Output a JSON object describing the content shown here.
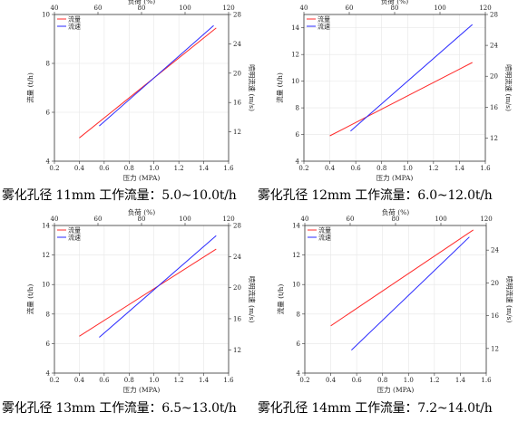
{
  "colors": {
    "flow": "#ff2a2a",
    "velocity": "#2a2aff",
    "axis": "#333333"
  },
  "captions": [
    "雾化孔径 11mm 工作流量：5.0~10.0t/h",
    "雾化孔径 12mm  工作流量：6.0~12.0t/h",
    "雾化孔径 13mm 工作流量：6.5~13.0t/h",
    "雾化孔径 14mm  工作流量：7.2~14.0t/h"
  ],
  "chart_data": [
    {
      "type": "line",
      "title": "",
      "xlabel": "压力 (MPA)",
      "ylabel": "流量 (t/h)",
      "y2label": "喷明流速 (m/s)",
      "x2label": "负荷 (%)",
      "xlim": [
        0.2,
        1.6
      ],
      "xticks": [
        0.2,
        0.4,
        0.6,
        0.8,
        1.0,
        1.2,
        1.4,
        1.6
      ],
      "x2lim": [
        40,
        120
      ],
      "x2ticks": [
        40,
        60,
        80,
        100,
        120
      ],
      "ylim": [
        4,
        10
      ],
      "yticks": [
        4,
        6,
        8,
        10
      ],
      "y2lim": [
        8,
        28
      ],
      "y2ticks": [
        12,
        16,
        20,
        24,
        28
      ],
      "legend": [
        "流量",
        "流速"
      ],
      "legend_position": "top-left",
      "grid": true,
      "series": [
        {
          "name": "流量",
          "axis": "left",
          "x": [
            0.4,
            1.5
          ],
          "y": [
            4.95,
            9.45
          ]
        },
        {
          "name": "流速",
          "axis": "right",
          "x": [
            0.56,
            1.48
          ],
          "y": [
            12.8,
            26.5
          ]
        }
      ]
    },
    {
      "type": "line",
      "title": "",
      "xlabel": "压力 (MPA)",
      "ylabel": "流量 (t/h)",
      "y2label": "喷明流速 (m/s)",
      "x2label": "负荷 (%)",
      "xlim": [
        0.2,
        1.6
      ],
      "xticks": [
        0.2,
        0.4,
        0.6,
        0.8,
        1.0,
        1.2,
        1.4,
        1.6
      ],
      "x2lim": [
        40,
        120
      ],
      "x2ticks": [
        40,
        60,
        80,
        100,
        120
      ],
      "ylim": [
        4,
        15
      ],
      "yticks": [
        4,
        6,
        8,
        10,
        12,
        14
      ],
      "y2lim": [
        9,
        28
      ],
      "y2ticks": [
        12,
        16,
        20,
        24,
        28
      ],
      "legend": [
        "流量",
        "流速"
      ],
      "legend_position": "top-left",
      "grid": true,
      "series": [
        {
          "name": "流量",
          "axis": "left",
          "x": [
            0.4,
            1.5
          ],
          "y": [
            5.9,
            11.4
          ]
        },
        {
          "name": "流速",
          "axis": "right",
          "x": [
            0.56,
            1.5
          ],
          "y": [
            12.9,
            26.7
          ]
        }
      ]
    },
    {
      "type": "line",
      "title": "",
      "xlabel": "压力 (MPA)",
      "ylabel": "流量 (t/h)",
      "y2label": "喷明流速 (m/s)",
      "x2label": "负荷 (%)",
      "xlim": [
        0.2,
        1.6
      ],
      "xticks": [
        0.2,
        0.4,
        0.6,
        0.8,
        1.0,
        1.2,
        1.4,
        1.6
      ],
      "x2lim": [
        40,
        120
      ],
      "x2ticks": [
        40,
        60,
        80,
        100,
        120
      ],
      "ylim": [
        4,
        14
      ],
      "yticks": [
        4,
        6,
        8,
        10,
        12,
        14
      ],
      "y2lim": [
        9,
        28
      ],
      "y2ticks": [
        12,
        16,
        20,
        24,
        28
      ],
      "legend": [
        "流量",
        "流速"
      ],
      "legend_position": "top-left",
      "grid": true,
      "series": [
        {
          "name": "流量",
          "axis": "left",
          "x": [
            0.4,
            1.5
          ],
          "y": [
            6.5,
            12.4
          ]
        },
        {
          "name": "流速",
          "axis": "right",
          "x": [
            0.56,
            1.5
          ],
          "y": [
            13.6,
            26.7
          ]
        }
      ]
    },
    {
      "type": "line",
      "title": "",
      "xlabel": "压力 (MPA)",
      "ylabel": "流量 (t/h)",
      "y2label": "喷明流速 (m/s)",
      "x2label": "负荷 (%)",
      "xlim": [
        0.2,
        1.6
      ],
      "xticks": [
        0.2,
        0.4,
        0.6,
        0.8,
        1.0,
        1.2,
        1.4,
        1.6
      ],
      "x2lim": [
        40,
        120
      ],
      "x2ticks": [
        40,
        60,
        80,
        100,
        120
      ],
      "ylim": [
        4,
        14
      ],
      "yticks": [
        4,
        6,
        8,
        10,
        12,
        14
      ],
      "y2lim": [
        9,
        27
      ],
      "y2ticks": [
        12,
        16,
        20,
        24
      ],
      "legend": [
        "流量",
        "流速"
      ],
      "legend_position": "top-left",
      "grid": true,
      "series": [
        {
          "name": "流量",
          "axis": "left",
          "x": [
            0.4,
            1.5
          ],
          "y": [
            7.2,
            13.7
          ]
        },
        {
          "name": "流速",
          "axis": "right",
          "x": [
            0.56,
            1.47
          ],
          "y": [
            11.8,
            25.6
          ]
        }
      ]
    }
  ]
}
